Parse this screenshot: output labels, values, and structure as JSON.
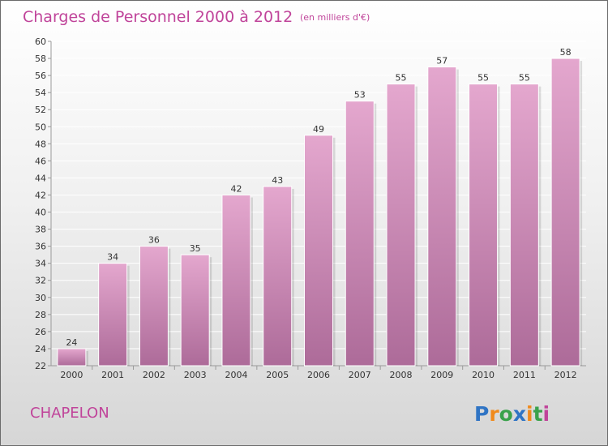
{
  "header": {
    "title": "Charges de Personnel 2000 à 2012",
    "subtitle": "(en milliers d'€)"
  },
  "footer": {
    "place": "CHAPELON",
    "logo_text": "Proxiti",
    "logo_letters": [
      {
        "ch": "P",
        "color": "#2f74c4"
      },
      {
        "ch": "r",
        "color": "#f08a1c"
      },
      {
        "ch": "o",
        "color": "#3aa24c"
      },
      {
        "ch": "x",
        "color": "#2f74c4"
      },
      {
        "ch": "i",
        "color": "#f08a1c"
      },
      {
        "ch": "t",
        "color": "#3aa24c"
      },
      {
        "ch": "i",
        "color": "#c0449a"
      }
    ]
  },
  "colors": {
    "bar_top": "#e4a7ce",
    "bar_bottom": "#ad6b99",
    "grid": "#ffffff",
    "accent": "#c0449a"
  },
  "chart_data": {
    "type": "bar",
    "categories": [
      "2000",
      "2001",
      "2002",
      "2003",
      "2004",
      "2005",
      "2006",
      "2007",
      "2008",
      "2009",
      "2010",
      "2011",
      "2012"
    ],
    "values": [
      24,
      34,
      36,
      35,
      42,
      43,
      49,
      53,
      55,
      57,
      55,
      55,
      58
    ],
    "ylim": [
      22,
      60
    ],
    "yticks": [
      22,
      24,
      26,
      28,
      30,
      32,
      34,
      36,
      38,
      40,
      42,
      44,
      46,
      48,
      50,
      52,
      54,
      56,
      58,
      60
    ],
    "grid": true,
    "xlabel": "",
    "ylabel": ""
  }
}
